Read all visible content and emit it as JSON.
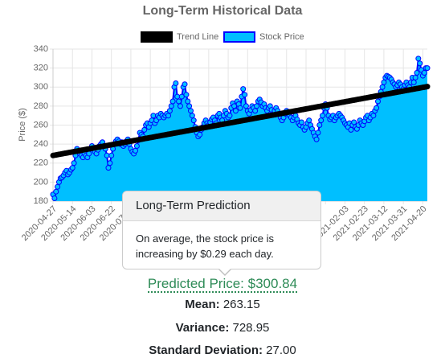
{
  "chart_data": {
    "type": "line",
    "title": "Long-Term Historical Data",
    "ylabel": "Price ($)",
    "categories": [
      "2020-04-27",
      null,
      null,
      null,
      null,
      null,
      null,
      null,
      null,
      null,
      null,
      null,
      null,
      "2020-05-14",
      null,
      null,
      null,
      null,
      null,
      null,
      null,
      null,
      null,
      null,
      null,
      null,
      "2020-06-03",
      null,
      null,
      null,
      null,
      null,
      null,
      null,
      null,
      null,
      null,
      null,
      null,
      "2020-06-22",
      null,
      null,
      null,
      null,
      null,
      null,
      null,
      null,
      null,
      null,
      null,
      null,
      "2020-07-10",
      null,
      null,
      null,
      null,
      null,
      null,
      null,
      null,
      null,
      null,
      null,
      null,
      null,
      null,
      null,
      null,
      null,
      null,
      null,
      null,
      null,
      null,
      null,
      null,
      null,
      null,
      null,
      null,
      null,
      null,
      null,
      null,
      null,
      null,
      null,
      null,
      null,
      null,
      null,
      null,
      null,
      null,
      null,
      null,
      null,
      null,
      null,
      null,
      null,
      null,
      null,
      null,
      null,
      null,
      null,
      null,
      null,
      null,
      null,
      null,
      null,
      null,
      null,
      null,
      null,
      null,
      null,
      null,
      null,
      null,
      null,
      null,
      null,
      null,
      null,
      null,
      null,
      null,
      null,
      null,
      null,
      null,
      null,
      null,
      null,
      null,
      null,
      null,
      null,
      null,
      null,
      null,
      null,
      null,
      null,
      null,
      null,
      null,
      null,
      null,
      null,
      null,
      null,
      null,
      null,
      null,
      null,
      null,
      null,
      null,
      null,
      null,
      null,
      null,
      null,
      null,
      null,
      null,
      null,
      null,
      null,
      null,
      null,
      null,
      null,
      null,
      null,
      null,
      null,
      null,
      null,
      null,
      null,
      null,
      null,
      null,
      null,
      null,
      null,
      null,
      null,
      null,
      "2021-02-03",
      null,
      null,
      null,
      null,
      null,
      null,
      null,
      null,
      null,
      null,
      null,
      null,
      "2021-02-23",
      null,
      null,
      null,
      null,
      null,
      null,
      null,
      null,
      null,
      null,
      null,
      null,
      "2021-03-12",
      null,
      null,
      null,
      null,
      null,
      null,
      null,
      null,
      null,
      null,
      null,
      null,
      "2021-03-31",
      null,
      null,
      null,
      null,
      null,
      null,
      null,
      null,
      null,
      null,
      null,
      null,
      "2021-04-20",
      null,
      null,
      null
    ],
    "series": [
      {
        "name": "Trend Line",
        "color": "#000000",
        "values": [
          228.0,
          228.29,
          228.58,
          228.87,
          229.16,
          229.45,
          229.74,
          230.03,
          230.32,
          230.61,
          230.9,
          231.19,
          231.48,
          231.77,
          232.06,
          232.35,
          232.64,
          232.93,
          233.22,
          233.51,
          233.8,
          234.09,
          234.38,
          234.67,
          234.96,
          235.25,
          235.54,
          235.83,
          236.12,
          236.41,
          236.7,
          236.99,
          237.28,
          237.57,
          237.86,
          238.15,
          238.44,
          238.73,
          239.02,
          239.31,
          239.6,
          239.89,
          240.18,
          240.47,
          240.76,
          241.05,
          241.34,
          241.63,
          241.92,
          242.21,
          242.5,
          242.79,
          243.08,
          243.37,
          243.66,
          243.95,
          244.24,
          244.53,
          244.82,
          245.11,
          245.4,
          245.69,
          245.98,
          246.27,
          246.56,
          246.85,
          247.14,
          247.43,
          247.72,
          248.01,
          248.3,
          248.59,
          248.88,
          249.17,
          249.46,
          249.75,
          250.04,
          250.33,
          250.62,
          250.91,
          251.2,
          251.49,
          251.78,
          252.07,
          252.36,
          252.65,
          252.94,
          253.23,
          253.52,
          253.81,
          254.1,
          254.39,
          254.68,
          254.97,
          255.26,
          255.55,
          255.84,
          256.13,
          256.42,
          256.71,
          257.0,
          257.29,
          257.58,
          257.87,
          258.16,
          258.45,
          258.74,
          259.03,
          259.32,
          259.61,
          259.9,
          260.19,
          260.48,
          260.77,
          261.06,
          261.35,
          261.64,
          261.93,
          262.22,
          262.51,
          262.8,
          263.09,
          263.38,
          263.67,
          263.96,
          264.25,
          264.54,
          264.83,
          265.12,
          265.41,
          265.7,
          265.99,
          266.28,
          266.57,
          266.86,
          267.15,
          267.44,
          267.73,
          268.02,
          268.31,
          268.6,
          268.89,
          269.18,
          269.47,
          269.76,
          270.05,
          270.34,
          270.63,
          270.92,
          271.21,
          271.5,
          271.79,
          272.08,
          272.37,
          272.66,
          272.95,
          273.24,
          273.53,
          273.82,
          274.11,
          274.4,
          274.69,
          274.98,
          275.27,
          275.56,
          275.85,
          276.14,
          276.43,
          276.72,
          277.01,
          277.3,
          277.59,
          277.88,
          278.17,
          278.46,
          278.75,
          279.04,
          279.33,
          279.62,
          279.91,
          280.2,
          280.49,
          280.78,
          281.07,
          281.36,
          281.65,
          281.94,
          282.23,
          282.52,
          282.81,
          283.1,
          283.39,
          283.68,
          283.97,
          284.26,
          284.55,
          284.84,
          285.13,
          285.42,
          285.71,
          286.0,
          286.29,
          286.58,
          286.87,
          287.16,
          287.45,
          287.74,
          288.03,
          288.32,
          288.61,
          288.9,
          289.19,
          289.48,
          289.77,
          290.06,
          290.35,
          290.64,
          290.93,
          291.22,
          291.51,
          291.8,
          292.09,
          292.38,
          292.67,
          292.96,
          293.25,
          293.54,
          293.83,
          294.12,
          294.41,
          294.7,
          294.99,
          295.28,
          295.57,
          295.86,
          296.15,
          296.44,
          296.73,
          297.02,
          297.31,
          297.6,
          297.89,
          298.18,
          298.47,
          298.76,
          299.05,
          299.34,
          299.63,
          299.92,
          300.21,
          300.5
        ]
      },
      {
        "name": "Stock Price",
        "color": "#0000ff",
        "fill": "#00bfff",
        "values": [
          187,
          183,
          190,
          195,
          200,
          204,
          205,
          207,
          210,
          212,
          208,
          210,
          213,
          215,
          220,
          228,
          235,
          232,
          230,
          228,
          226,
          230,
          228,
          226,
          230,
          235,
          238,
          235,
          232,
          230,
          234,
          238,
          240,
          242,
          238,
          235,
          228,
          215,
          220,
          228,
          235,
          240,
          243,
          245,
          243,
          240,
          242,
          238,
          240,
          243,
          245,
          240,
          235,
          232,
          230,
          233,
          238,
          244,
          252,
          250,
          248,
          255,
          260,
          262,
          258,
          262,
          265,
          270,
          262,
          265,
          270,
          268,
          272,
          270,
          268,
          270,
          272,
          270,
          275,
          280,
          285,
          300,
          304,
          290,
          285,
          280,
          290,
          300,
          303,
          292,
          285,
          280,
          275,
          270,
          265,
          258,
          252,
          248,
          250,
          255,
          258,
          262,
          265,
          262,
          260,
          263,
          266,
          268,
          265,
          262,
          270,
          272,
          268,
          265,
          270,
          275,
          272,
          268,
          270,
          278,
          283,
          280,
          275,
          285,
          282,
          278,
          290,
          298,
          292,
          280,
          275,
          272,
          276,
          280,
          278,
          275,
          280,
          285,
          287,
          284,
          280,
          282,
          278,
          275,
          278,
          280,
          276,
          272,
          275,
          278,
          275,
          272,
          268,
          265,
          268,
          272,
          275,
          273,
          270,
          268,
          265,
          268,
          270,
          266,
          262,
          260,
          263,
          258,
          255,
          258,
          262,
          265,
          260,
          256,
          252,
          248,
          245,
          252,
          260,
          265,
          270,
          278,
          282,
          278,
          270,
          266,
          268,
          270,
          265,
          268,
          270,
          272,
          270,
          268,
          265,
          262,
          260,
          258,
          262,
          255,
          260,
          263,
          258,
          256,
          260,
          265,
          262,
          260,
          264,
          268,
          270,
          265,
          268,
          272,
          270,
          275,
          278,
          285,
          290,
          295,
          300,
          305,
          310,
          312,
          311,
          310,
          308,
          305,
          303,
          300,
          302,
          305,
          303,
          300,
          298,
          302,
          305,
          302,
          300,
          305,
          310,
          305,
          310,
          315,
          330,
          325,
          318,
          312,
          315,
          320,
          320
        ]
      }
    ],
    "ylim": [
      180,
      340
    ],
    "yticks": [
      180,
      200,
      220,
      240,
      260,
      280,
      300,
      320,
      340
    ],
    "grid": true,
    "legend": "top"
  },
  "popover": {
    "title": "Long-Term Prediction",
    "body": "On average, the stock price is increasing by $0.29 each day."
  },
  "predicted": "Predicted Price: $300.84",
  "stats": [
    {
      "label": "Mean:",
      "value": "263.15"
    },
    {
      "label": "Variance:",
      "value": "728.95"
    },
    {
      "label": "Standard Deviation:",
      "value": "27.00"
    }
  ]
}
